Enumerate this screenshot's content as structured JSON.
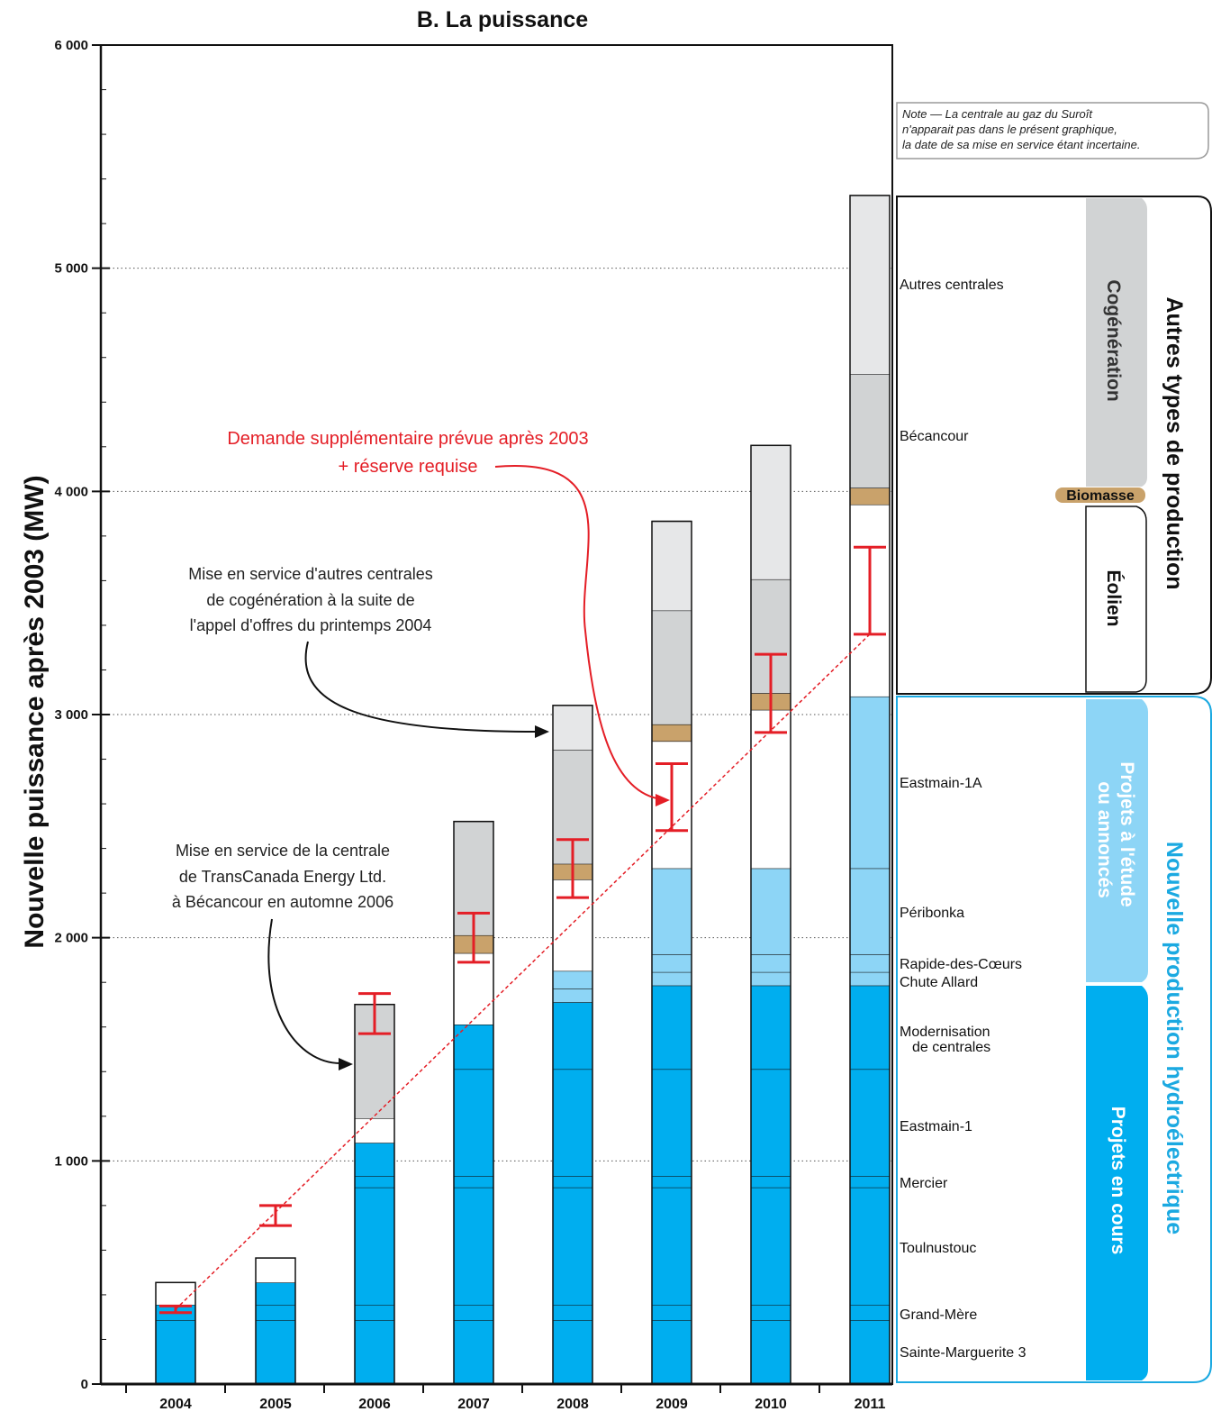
{
  "chart_data": {
    "type": "bar",
    "stacked": true,
    "title": "B. La puissance",
    "ylabel": "Nouvelle puissance après 2003 (MW)",
    "xlabel": "",
    "ylim": [
      0,
      6000
    ],
    "y_ticks": [
      0,
      1000,
      2000,
      3000,
      4000,
      5000,
      6000
    ],
    "y_tick_labels": [
      "0",
      "1 000",
      "2 000",
      "3 000",
      "4 000",
      "5 000",
      "6 000"
    ],
    "gridlines": [
      1000,
      2000,
      3000,
      4000,
      5000
    ],
    "categories": [
      "2004",
      "2005",
      "2006",
      "2007",
      "2008",
      "2009",
      "2010",
      "2011"
    ],
    "series": [
      {
        "name": "Sainte-Marguerite 3",
        "color": "#00aeef",
        "values": [
          285,
          285,
          285,
          285,
          285,
          285,
          285,
          285
        ]
      },
      {
        "name": "Grand-Mère",
        "color": "#00aeef",
        "values": [
          70,
          70,
          70,
          70,
          70,
          70,
          70,
          70
        ]
      },
      {
        "name": "Toulnustouc",
        "color": "#00aeef",
        "values": [
          0,
          100,
          526,
          526,
          526,
          526,
          526,
          526
        ]
      },
      {
        "name": "Mercier",
        "color": "#00aeef",
        "values": [
          0,
          0,
          50,
          50,
          50,
          50,
          50,
          50
        ]
      },
      {
        "name": "Eastmain-1",
        "color": "#00aeef",
        "values": [
          0,
          0,
          0,
          480,
          480,
          480,
          480,
          480
        ]
      },
      {
        "name": "Modernisation de centrales",
        "color": "#00aeef",
        "values": [
          0,
          0,
          150,
          200,
          300,
          375,
          375,
          375
        ]
      },
      {
        "name": "Chute Allard",
        "color": "#8dd5f6",
        "values": [
          0,
          0,
          0,
          0,
          60,
          60,
          60,
          60
        ]
      },
      {
        "name": "Rapide-des-Cœurs",
        "color": "#8dd5f6",
        "values": [
          0,
          0,
          0,
          0,
          80,
          80,
          80,
          80
        ]
      },
      {
        "name": "Péribonka",
        "color": "#8dd5f6",
        "values": [
          0,
          0,
          0,
          0,
          0,
          385,
          385,
          385
        ]
      },
      {
        "name": "Eastmain-1A",
        "color": "#8dd5f6",
        "values": [
          0,
          0,
          0,
          0,
          0,
          0,
          0,
          770
        ]
      },
      {
        "name": "Éolien",
        "color": "#ffffff",
        "values": [
          100,
          110,
          110,
          320,
          410,
          570,
          710,
          860
        ]
      },
      {
        "name": "Biomasse",
        "color": "#c9a26b",
        "values": [
          0,
          0,
          0,
          80,
          70,
          75,
          75,
          75
        ]
      },
      {
        "name": "Bécancour",
        "color": "#d1d3d4",
        "values": [
          0,
          0,
          510,
          510,
          510,
          510,
          510,
          510
        ]
      },
      {
        "name": "Autres centrales",
        "color": "#e6e7e8",
        "values": [
          0,
          0,
          0,
          0,
          200,
          400,
          600,
          800
        ]
      }
    ],
    "demand_ranges": [
      [
        320,
        350
      ],
      [
        710,
        800
      ],
      [
        1570,
        1750
      ],
      [
        1890,
        2110
      ],
      [
        2180,
        2440
      ],
      [
        2480,
        2780
      ],
      [
        2920,
        3270
      ],
      [
        3360,
        3750
      ]
    ],
    "demand_trend": [
      [
        2004,
        335
      ],
      [
        2011,
        3360
      ]
    ]
  },
  "annotations": {
    "demand": [
      "Demande supplémentaire prévue après 2003",
      "+ réserve requise"
    ],
    "cogen": [
      "Mise en service d'autres centrales",
      "de cogénération à la suite de",
      "l'appel d'offres du printemps 2004"
    ],
    "becancour": [
      "Mise en service de la centrale",
      "de TransCanada Energy Ltd.",
      "à Bécancour en automne 2006"
    ]
  },
  "note": [
    "Note — La centrale au gaz du Suroît",
    "n'apparait pas dans le présent graphique,",
    "la date de sa mise en service étant incertaine."
  ],
  "right_labels": [
    {
      "text": "Autres centrales"
    },
    {
      "text": "Bécancour"
    },
    {
      "text": "Eastmain-1A"
    },
    {
      "text": "Péribonka"
    },
    {
      "text": "Rapide-des-Cœurs"
    },
    {
      "text": "Chute Allard"
    },
    {
      "text": "Modernisation"
    },
    {
      "text": "de centrales"
    },
    {
      "text": "Eastmain-1"
    },
    {
      "text": "Mercier"
    },
    {
      "text": "Toulnustouc"
    },
    {
      "text": "Grand-Mère"
    },
    {
      "text": "Sainte-Marguerite 3"
    }
  ],
  "groups": {
    "cogeneration": "Cogénération",
    "biomasse": "Biomasse",
    "eolien": "Éolien",
    "autres_types": "Autres types de production",
    "projets_etude_1": "Projets à l'étude",
    "projets_etude_2": "ou annoncés",
    "projets_cours": "Projets en cours",
    "nouvelle_prod": "Nouvelle production  hydroélectrique"
  },
  "colors": {
    "demand": "#e41e26",
    "hydro_dark": "#00aeef",
    "hydro_light": "#8dd5f6",
    "hydro_group": "#1ba9e1",
    "outline": "#111111"
  }
}
